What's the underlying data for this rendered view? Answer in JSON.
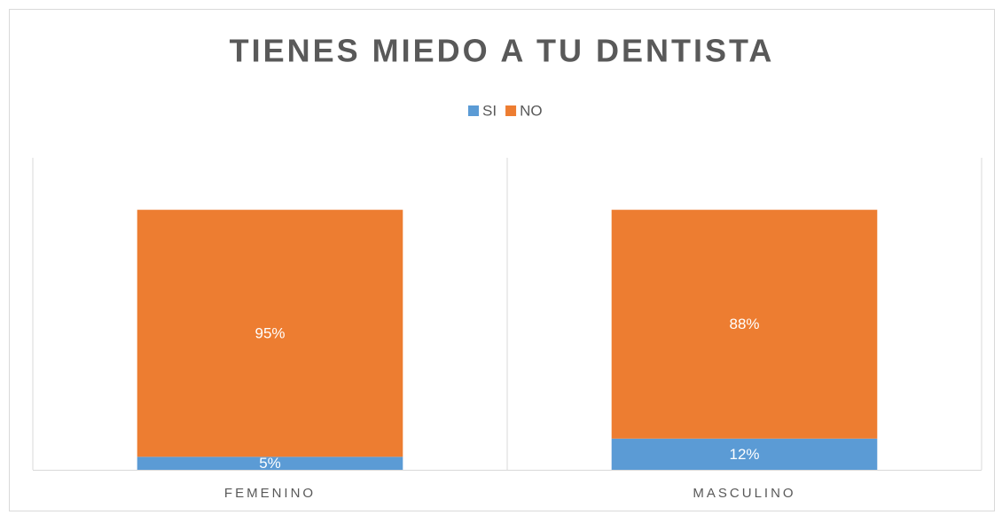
{
  "chart_data": {
    "type": "stacked_bar",
    "title": "TIENES MIEDO A TU DENTISTA",
    "categories": [
      "FEMENINO",
      "MASCULINO"
    ],
    "series": [
      {
        "name": "SI",
        "color": "#5b9bd5",
        "values": [
          5,
          12
        ],
        "value_labels": [
          "5%",
          "12%"
        ]
      },
      {
        "name": "NO",
        "color": "#ed7d31",
        "values": [
          95,
          88
        ],
        "value_labels": [
          "95%",
          "88%"
        ]
      }
    ],
    "ylim": [
      0,
      120
    ],
    "legend": "top"
  }
}
